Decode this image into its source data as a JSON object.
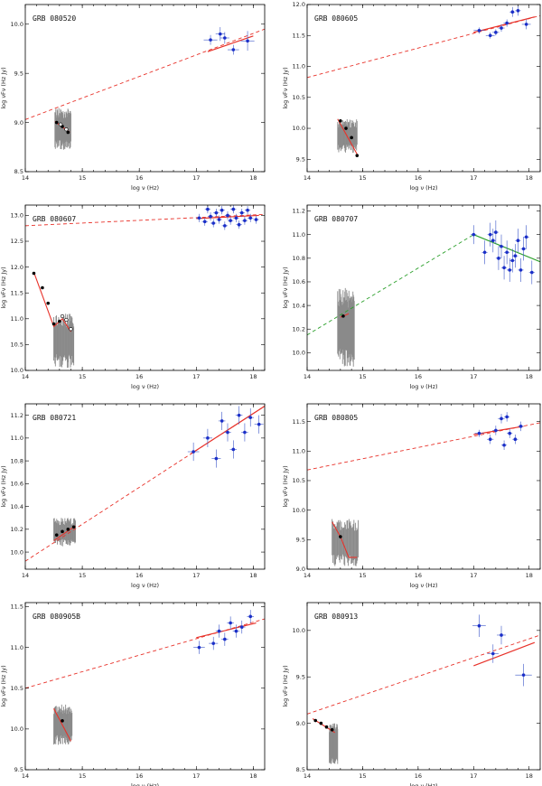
{
  "chart_data": [
    {
      "type": "scatter",
      "title": "GRB 080520",
      "xlabel": "log ν (Hz)",
      "ylabel": "log νFν (Hz Jy)",
      "xlim": [
        14,
        18.2
      ],
      "ylim": [
        8.5,
        10.2
      ],
      "xticks": [
        14,
        15,
        16,
        17,
        18
      ],
      "yticks": [
        8.5,
        9.0,
        9.5,
        10.0
      ],
      "fit_dashed": {
        "x": [
          14,
          18.2
        ],
        "y": [
          9.03,
          9.95
        ]
      },
      "fit_xray": {
        "x": [
          17.2,
          18.0
        ],
        "y": [
          9.72,
          9.88
        ]
      },
      "optical_points": [
        {
          "x": 14.55,
          "y": 9.0
        },
        {
          "x": 14.65,
          "y": 8.96
        },
        {
          "x": 14.75,
          "y": 8.9
        }
      ],
      "optical_open_points": [
        {
          "x": 14.62,
          "y": 8.98
        },
        {
          "x": 14.72,
          "y": 8.93
        }
      ],
      "optical_fit": {
        "x": [
          14.52,
          14.78
        ],
        "y": [
          9.01,
          8.9
        ]
      },
      "optical_band": {
        "x": [
          14.52,
          14.8
        ],
        "ymin": 8.72,
        "ymax": 9.15
      },
      "xray_points": [
        {
          "x": 17.25,
          "y": 9.84,
          "xerr": 0.12,
          "yerr": 0.05
        },
        {
          "x": 17.42,
          "y": 9.9,
          "xerr": 0.08,
          "yerr": 0.07
        },
        {
          "x": 17.5,
          "y": 9.86,
          "xerr": 0.08,
          "yerr": 0.06
        },
        {
          "x": 17.65,
          "y": 9.74,
          "xerr": 0.1,
          "yerr": 0.05
        },
        {
          "x": 17.9,
          "y": 9.83,
          "xerr": 0.12,
          "yerr": 0.1
        }
      ]
    },
    {
      "type": "scatter",
      "title": "GRB 080605",
      "xlabel": "log ν (Hz)",
      "ylabel": "log νFν (Hz Jy)",
      "xlim": [
        14,
        18.2
      ],
      "ylim": [
        9.3,
        12.0
      ],
      "xticks": [
        14,
        15,
        16,
        17,
        18
      ],
      "yticks": [
        9.5,
        10.0,
        10.5,
        11.0,
        11.5,
        12.0
      ],
      "fit_dashed": {
        "x": [
          14,
          18.2
        ],
        "y": [
          10.82,
          11.82
        ]
      },
      "fit_xray": {
        "x": [
          17.0,
          18.1
        ],
        "y": [
          11.55,
          11.8
        ]
      },
      "optical_points": [
        {
          "x": 14.6,
          "y": 10.12
        },
        {
          "x": 14.7,
          "y": 10.0
        },
        {
          "x": 14.8,
          "y": 9.85
        },
        {
          "x": 14.9,
          "y": 9.56
        }
      ],
      "optical_open_points": [],
      "optical_fit": {
        "x": [
          14.55,
          14.92
        ],
        "y": [
          10.15,
          9.55
        ]
      },
      "optical_band": {
        "x": [
          14.55,
          14.9
        ],
        "ymin": 9.6,
        "ymax": 10.15
      },
      "xray_points": [
        {
          "x": 17.1,
          "y": 11.58,
          "xerr": 0.1,
          "yerr": 0.05
        },
        {
          "x": 17.3,
          "y": 11.5,
          "xerr": 0.08,
          "yerr": 0.05
        },
        {
          "x": 17.4,
          "y": 11.55,
          "xerr": 0.06,
          "yerr": 0.05
        },
        {
          "x": 17.5,
          "y": 11.62,
          "xerr": 0.06,
          "yerr": 0.06
        },
        {
          "x": 17.6,
          "y": 11.7,
          "xerr": 0.06,
          "yerr": 0.06
        },
        {
          "x": 17.7,
          "y": 11.88,
          "xerr": 0.05,
          "yerr": 0.08
        },
        {
          "x": 17.8,
          "y": 11.9,
          "xerr": 0.05,
          "yerr": 0.08
        },
        {
          "x": 17.95,
          "y": 11.68,
          "xerr": 0.08,
          "yerr": 0.08
        }
      ]
    },
    {
      "type": "scatter",
      "title": "GRB 080607",
      "xlabel": "log ν (Hz)",
      "ylabel": "log νFν (Hz Jy)",
      "xlim": [
        14,
        18.2
      ],
      "ylim": [
        10.0,
        13.2
      ],
      "xticks": [
        14,
        15,
        16,
        17,
        18
      ],
      "yticks": [
        10.0,
        10.5,
        11.0,
        11.5,
        12.0,
        12.5,
        13.0
      ],
      "fit_dashed": {
        "x": [
          14,
          18.2
        ],
        "y": [
          12.8,
          13.02
        ]
      },
      "fit_xray": {
        "x": [
          17.0,
          18.1
        ],
        "y": [
          12.94,
          13.0
        ]
      },
      "optical_points": [
        {
          "x": 14.15,
          "y": 11.88
        },
        {
          "x": 14.3,
          "y": 11.6
        },
        {
          "x": 14.4,
          "y": 11.3
        },
        {
          "x": 14.5,
          "y": 10.9
        },
        {
          "x": 14.6,
          "y": 10.95
        }
      ],
      "optical_open_points": [
        {
          "x": 14.65,
          "y": 11.05
        },
        {
          "x": 14.72,
          "y": 10.98
        },
        {
          "x": 14.8,
          "y": 10.8
        }
      ],
      "optical_fit": {
        "x": [
          14.15,
          14.5,
          14.65,
          14.8
        ],
        "y": [
          11.9,
          10.85,
          11.0,
          10.75
        ]
      },
      "optical_band": {
        "x": [
          14.5,
          14.85
        ],
        "ymin": 10.05,
        "ymax": 11.1
      },
      "xray_points": [
        {
          "x": 17.05,
          "y": 12.95,
          "xerr": 0.05,
          "yerr": 0.08
        },
        {
          "x": 17.15,
          "y": 12.88,
          "xerr": 0.05,
          "yerr": 0.08
        },
        {
          "x": 17.2,
          "y": 13.12,
          "xerr": 0.05,
          "yerr": 0.08
        },
        {
          "x": 17.25,
          "y": 12.98,
          "xerr": 0.05,
          "yerr": 0.08
        },
        {
          "x": 17.3,
          "y": 12.85,
          "xerr": 0.05,
          "yerr": 0.08
        },
        {
          "x": 17.35,
          "y": 13.05,
          "xerr": 0.05,
          "yerr": 0.08
        },
        {
          "x": 17.4,
          "y": 12.92,
          "xerr": 0.05,
          "yerr": 0.08
        },
        {
          "x": 17.45,
          "y": 13.1,
          "xerr": 0.05,
          "yerr": 0.08
        },
        {
          "x": 17.5,
          "y": 12.8,
          "xerr": 0.05,
          "yerr": 0.08
        },
        {
          "x": 17.55,
          "y": 13.0,
          "xerr": 0.05,
          "yerr": 0.08
        },
        {
          "x": 17.6,
          "y": 12.9,
          "xerr": 0.05,
          "yerr": 0.08
        },
        {
          "x": 17.65,
          "y": 13.12,
          "xerr": 0.05,
          "yerr": 0.08
        },
        {
          "x": 17.7,
          "y": 12.95,
          "xerr": 0.05,
          "yerr": 0.08
        },
        {
          "x": 17.75,
          "y": 12.82,
          "xerr": 0.05,
          "yerr": 0.08
        },
        {
          "x": 17.8,
          "y": 13.05,
          "xerr": 0.05,
          "yerr": 0.08
        },
        {
          "x": 17.85,
          "y": 12.9,
          "xerr": 0.05,
          "yerr": 0.08
        },
        {
          "x": 17.9,
          "y": 13.1,
          "xerr": 0.05,
          "yerr": 0.08
        },
        {
          "x": 17.95,
          "y": 12.95,
          "xerr": 0.05,
          "yerr": 0.08
        },
        {
          "x": 18.05,
          "y": 12.92,
          "xerr": 0.05,
          "yerr": 0.08
        }
      ]
    },
    {
      "type": "scatter",
      "title": "GRB 080707",
      "xlabel": "log ν (Hz)",
      "ylabel": "log νFν (Hz Jy)",
      "xlim": [
        14,
        18.2
      ],
      "ylim": [
        9.85,
        11.25
      ],
      "xticks": [
        14,
        15,
        16,
        17,
        18
      ],
      "yticks": [
        10.0,
        10.2,
        10.4,
        10.6,
        10.8,
        11.0,
        11.2
      ],
      "fit_dashed": {
        "x": [
          14,
          17.0
        ],
        "y": [
          10.15,
          11.0
        ],
        "color": "#2ca02c"
      },
      "fit_xray": {
        "x": [
          17.0,
          18.2
        ],
        "y": [
          11.0,
          10.77
        ],
        "color": "#2ca02c"
      },
      "optical_points": [
        {
          "x": 14.65,
          "y": 10.31
        }
      ],
      "optical_open_points": [],
      "optical_fit": {
        "x": [
          14.6,
          14.75
        ],
        "y": [
          10.3,
          10.33
        ]
      },
      "optical_band": {
        "x": [
          14.55,
          14.85
        ],
        "ymin": 9.88,
        "ymax": 10.55
      },
      "xray_points": [
        {
          "x": 17.0,
          "y": 11.0,
          "xerr": 0.05,
          "yerr": 0.08
        },
        {
          "x": 17.2,
          "y": 10.85,
          "xerr": 0.05,
          "yerr": 0.1
        },
        {
          "x": 17.3,
          "y": 11.0,
          "xerr": 0.05,
          "yerr": 0.1
        },
        {
          "x": 17.35,
          "y": 10.95,
          "xerr": 0.05,
          "yerr": 0.1
        },
        {
          "x": 17.4,
          "y": 11.02,
          "xerr": 0.05,
          "yerr": 0.1
        },
        {
          "x": 17.45,
          "y": 10.8,
          "xerr": 0.05,
          "yerr": 0.1
        },
        {
          "x": 17.5,
          "y": 10.9,
          "xerr": 0.05,
          "yerr": 0.1
        },
        {
          "x": 17.55,
          "y": 10.72,
          "xerr": 0.05,
          "yerr": 0.1
        },
        {
          "x": 17.6,
          "y": 10.85,
          "xerr": 0.05,
          "yerr": 0.1
        },
        {
          "x": 17.65,
          "y": 10.7,
          "xerr": 0.05,
          "yerr": 0.1
        },
        {
          "x": 17.7,
          "y": 10.78,
          "xerr": 0.05,
          "yerr": 0.1
        },
        {
          "x": 17.75,
          "y": 10.82,
          "xerr": 0.05,
          "yerr": 0.1
        },
        {
          "x": 17.8,
          "y": 10.95,
          "xerr": 0.05,
          "yerr": 0.1
        },
        {
          "x": 17.85,
          "y": 10.7,
          "xerr": 0.05,
          "yerr": 0.1
        },
        {
          "x": 17.9,
          "y": 10.88,
          "xerr": 0.05,
          "yerr": 0.1
        },
        {
          "x": 17.95,
          "y": 10.98,
          "xerr": 0.05,
          "yerr": 0.1
        },
        {
          "x": 18.05,
          "y": 10.68,
          "xerr": 0.05,
          "yerr": 0.1
        }
      ]
    },
    {
      "type": "scatter",
      "title": "GRB 080721",
      "xlabel": "log ν (Hz)",
      "ylabel": "log νFν (Hz Jy)",
      "xlim": [
        14,
        18.2
      ],
      "ylim": [
        9.85,
        11.3
      ],
      "xticks": [
        14,
        15,
        16,
        17,
        18
      ],
      "yticks": [
        10.0,
        10.2,
        10.4,
        10.6,
        10.8,
        11.0,
        11.2
      ],
      "fit_dashed": {
        "x": [
          14,
          18.2
        ],
        "y": [
          9.92,
          11.28
        ]
      },
      "fit_xray": {
        "x": [
          16.9,
          18.2
        ],
        "y": [
          10.86,
          11.28
        ]
      },
      "optical_points": [
        {
          "x": 14.55,
          "y": 10.15
        },
        {
          "x": 14.65,
          "y": 10.18
        },
        {
          "x": 14.75,
          "y": 10.2
        },
        {
          "x": 14.85,
          "y": 10.22
        }
      ],
      "optical_open_points": [],
      "optical_fit": {
        "x": [
          14.5,
          14.88
        ],
        "y": [
          10.1,
          10.23
        ]
      },
      "optical_band": {
        "x": [
          14.5,
          14.88
        ],
        "ymin": 10.05,
        "ymax": 10.3
      },
      "xray_points": [
        {
          "x": 16.95,
          "y": 10.88,
          "xerr": 0.1,
          "yerr": 0.08
        },
        {
          "x": 17.2,
          "y": 11.0,
          "xerr": 0.08,
          "yerr": 0.08
        },
        {
          "x": 17.35,
          "y": 10.82,
          "xerr": 0.08,
          "yerr": 0.08
        },
        {
          "x": 17.45,
          "y": 11.15,
          "xerr": 0.06,
          "yerr": 0.08
        },
        {
          "x": 17.55,
          "y": 11.05,
          "xerr": 0.06,
          "yerr": 0.08
        },
        {
          "x": 17.65,
          "y": 10.9,
          "xerr": 0.06,
          "yerr": 0.08
        },
        {
          "x": 17.75,
          "y": 11.2,
          "xerr": 0.06,
          "yerr": 0.08
        },
        {
          "x": 17.85,
          "y": 11.05,
          "xerr": 0.06,
          "yerr": 0.08
        },
        {
          "x": 17.95,
          "y": 11.18,
          "xerr": 0.06,
          "yerr": 0.08
        },
        {
          "x": 18.1,
          "y": 11.12,
          "xerr": 0.08,
          "yerr": 0.08
        }
      ]
    },
    {
      "type": "scatter",
      "title": "GRB 080805",
      "xlabel": "log ν (Hz)",
      "ylabel": "log νFν (Hz Jy)",
      "xlim": [
        14,
        18.2
      ],
      "ylim": [
        9.0,
        11.8
      ],
      "xticks": [
        14,
        15,
        16,
        17,
        18
      ],
      "yticks": [
        9.0,
        9.5,
        10.0,
        10.5,
        11.0,
        11.5
      ],
      "fit_dashed": {
        "x": [
          14,
          18.2
        ],
        "y": [
          10.68,
          11.48
        ]
      },
      "fit_xray": {
        "x": [
          17.0,
          17.9
        ],
        "y": [
          11.28,
          11.42
        ]
      },
      "optical_points": [
        {
          "x": 14.6,
          "y": 9.55
        }
      ],
      "optical_open_points": [],
      "optical_fit": {
        "x": [
          14.45,
          14.6,
          14.75,
          14.9
        ],
        "y": [
          9.8,
          9.55,
          9.2,
          9.2
        ]
      },
      "optical_band": {
        "x": [
          14.45,
          14.92
        ],
        "ymin": 9.05,
        "ymax": 9.85
      },
      "xray_points": [
        {
          "x": 17.1,
          "y": 11.3,
          "xerr": 0.08,
          "yerr": 0.06
        },
        {
          "x": 17.3,
          "y": 11.2,
          "xerr": 0.06,
          "yerr": 0.08
        },
        {
          "x": 17.4,
          "y": 11.35,
          "xerr": 0.06,
          "yerr": 0.08
        },
        {
          "x": 17.5,
          "y": 11.55,
          "xerr": 0.06,
          "yerr": 0.08
        },
        {
          "x": 17.55,
          "y": 11.1,
          "xerr": 0.05,
          "yerr": 0.08
        },
        {
          "x": 17.6,
          "y": 11.58,
          "xerr": 0.05,
          "yerr": 0.08
        },
        {
          "x": 17.65,
          "y": 11.3,
          "xerr": 0.05,
          "yerr": 0.08
        },
        {
          "x": 17.75,
          "y": 11.2,
          "xerr": 0.05,
          "yerr": 0.08
        },
        {
          "x": 17.85,
          "y": 11.42,
          "xerr": 0.05,
          "yerr": 0.08
        }
      ]
    },
    {
      "type": "scatter",
      "title": "GRB 080905B",
      "xlabel": "log ν (Hz)",
      "ylabel": "log νFν (Hz Jy)",
      "xlim": [
        14,
        18.2
      ],
      "ylim": [
        9.5,
        11.55
      ],
      "xticks": [
        14,
        15,
        16,
        17,
        18
      ],
      "yticks": [
        9.5,
        10.0,
        10.5,
        11.0,
        11.5
      ],
      "fit_dashed": {
        "x": [
          14,
          18.2
        ],
        "y": [
          10.5,
          11.35
        ]
      },
      "fit_xray": {
        "x": [
          17.0,
          18.05
        ],
        "y": [
          11.12,
          11.3
        ]
      },
      "optical_points": [
        {
          "x": 14.65,
          "y": 10.1
        }
      ],
      "optical_open_points": [],
      "optical_fit": {
        "x": [
          14.5,
          14.8
        ],
        "y": [
          10.25,
          9.85
        ]
      },
      "optical_band": {
        "x": [
          14.5,
          14.82
        ],
        "ymin": 9.8,
        "ymax": 10.3
      },
      "xray_points": [
        {
          "x": 17.05,
          "y": 11.0,
          "xerr": 0.1,
          "yerr": 0.08
        },
        {
          "x": 17.3,
          "y": 11.05,
          "xerr": 0.08,
          "yerr": 0.08
        },
        {
          "x": 17.4,
          "y": 11.2,
          "xerr": 0.06,
          "yerr": 0.08
        },
        {
          "x": 17.5,
          "y": 11.1,
          "xerr": 0.06,
          "yerr": 0.08
        },
        {
          "x": 17.6,
          "y": 11.3,
          "xerr": 0.06,
          "yerr": 0.08
        },
        {
          "x": 17.7,
          "y": 11.2,
          "xerr": 0.06,
          "yerr": 0.08
        },
        {
          "x": 17.8,
          "y": 11.25,
          "xerr": 0.06,
          "yerr": 0.08
        },
        {
          "x": 17.95,
          "y": 11.38,
          "xerr": 0.06,
          "yerr": 0.08
        }
      ]
    },
    {
      "type": "scatter",
      "title": "GRB 080913",
      "xlabel": "log ν (Hz)",
      "ylabel": "log νFν (Hz Jy)",
      "xlim": [
        14,
        18.2
      ],
      "ylim": [
        8.5,
        10.3
      ],
      "xticks": [
        14,
        15,
        16,
        17,
        18
      ],
      "yticks": [
        8.5,
        9.0,
        9.5,
        10.0
      ],
      "fit_dashed": {
        "x": [
          14,
          18.2
        ],
        "y": [
          9.1,
          9.95
        ]
      },
      "fit_xray": {
        "x": [
          17.0,
          18.1
        ],
        "y": [
          9.62,
          9.87
        ]
      },
      "optical_points": [
        {
          "x": 14.15,
          "y": 9.03
        },
        {
          "x": 14.25,
          "y": 9.0
        },
        {
          "x": 14.35,
          "y": 8.96
        },
        {
          "x": 14.45,
          "y": 8.93
        }
      ],
      "optical_open_points": [],
      "optical_fit": {
        "x": [
          14.1,
          14.5
        ],
        "y": [
          9.05,
          8.9
        ]
      },
      "optical_band": {
        "x": [
          14.4,
          14.55
        ],
        "ymin": 8.55,
        "ymax": 9.0
      },
      "xray_points": [
        {
          "x": 17.1,
          "y": 10.05,
          "xerr": 0.12,
          "yerr": 0.12
        },
        {
          "x": 17.35,
          "y": 9.75,
          "xerr": 0.1,
          "yerr": 0.1
        },
        {
          "x": 17.5,
          "y": 9.95,
          "xerr": 0.08,
          "yerr": 0.1
        },
        {
          "x": 17.9,
          "y": 9.52,
          "xerr": 0.15,
          "yerr": 0.12
        }
      ]
    }
  ]
}
